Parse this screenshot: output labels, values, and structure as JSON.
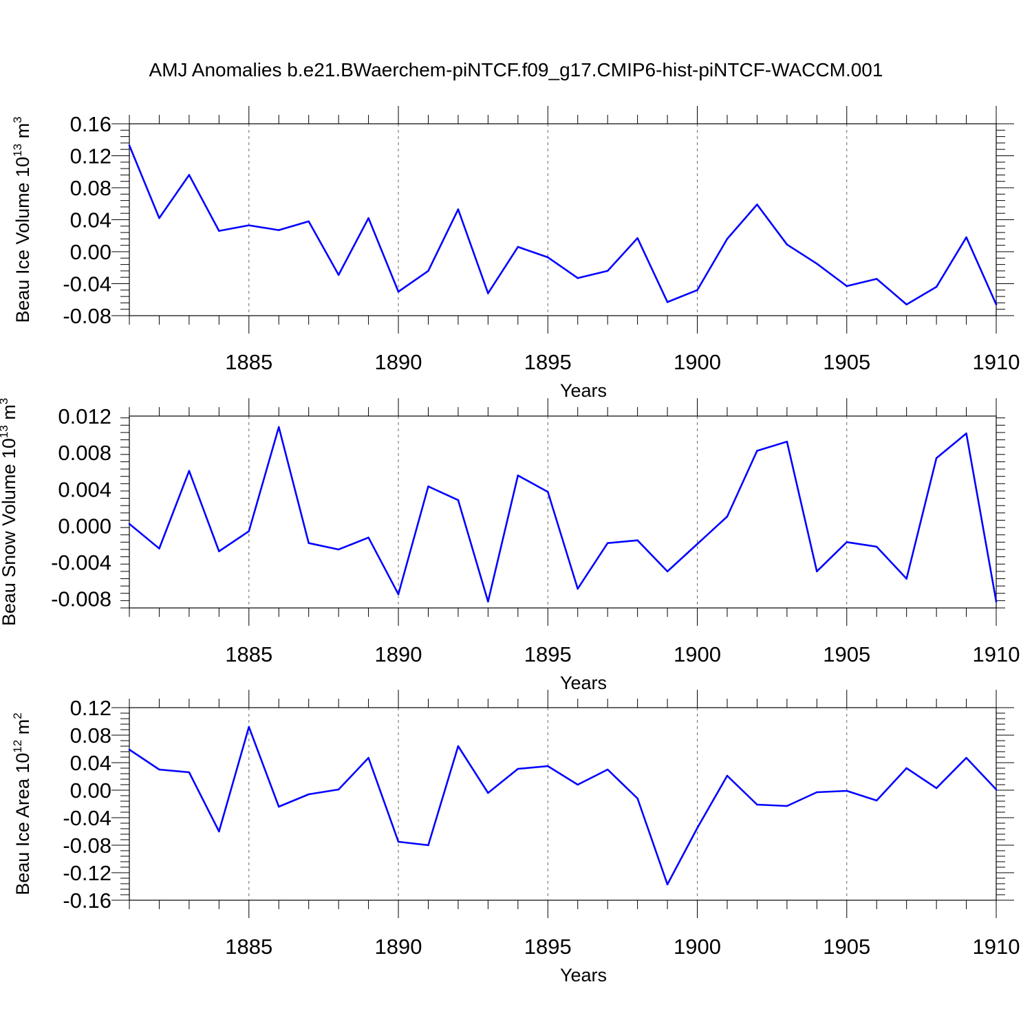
{
  "title": "AMJ Anomalies b.e21.BWaerchem-piNTCF.f09_g17.CMIP6-hist-piNTCF-WACCM.001",
  "chart_data": [
    {
      "type": "line",
      "xlabel": "Years",
      "ylabel_main": "Beau Ice Volume 10",
      "ylabel_sup": "13",
      "ylabel_unit": " m",
      "ylabel_unit_sup": "3",
      "xlim": [
        1881,
        1910
      ],
      "ylim": [
        -0.08,
        0.16
      ],
      "yticks": [
        "0.16",
        "0.12",
        "0.08",
        "0.04",
        "0.00",
        "-0.04",
        "-0.08"
      ],
      "ytick_values": [
        0.16,
        0.12,
        0.08,
        0.04,
        0.0,
        -0.04,
        -0.08
      ],
      "xticks": [
        "1885",
        "1890",
        "1895",
        "1900",
        "1905",
        "1910"
      ],
      "xtick_values": [
        1885,
        1890,
        1895,
        1900,
        1905,
        1910
      ],
      "color": "#0000ff",
      "grid": "vertical dashed at major x ticks",
      "x": [
        1881,
        1882,
        1883,
        1884,
        1885,
        1886,
        1887,
        1888,
        1889,
        1890,
        1891,
        1892,
        1893,
        1894,
        1895,
        1896,
        1897,
        1898,
        1899,
        1900,
        1901,
        1902,
        1903,
        1904,
        1905,
        1906,
        1907,
        1908,
        1909,
        1910
      ],
      "values": [
        0.133,
        0.042,
        0.096,
        0.026,
        0.033,
        0.027,
        0.038,
        -0.029,
        0.042,
        -0.05,
        -0.024,
        0.053,
        -0.052,
        0.006,
        -0.007,
        -0.033,
        -0.024,
        0.017,
        -0.063,
        -0.048,
        0.016,
        0.059,
        0.009,
        -0.015,
        -0.043,
        -0.034,
        -0.066,
        -0.044,
        0.018,
        -0.066
      ]
    },
    {
      "type": "line",
      "xlabel": "Years",
      "ylabel_main": "Beau Snow Volume 10",
      "ylabel_sup": "13",
      "ylabel_unit": " m",
      "ylabel_unit_sup": "3",
      "xlim": [
        1881,
        1910
      ],
      "ylim": [
        -0.009,
        0.012
      ],
      "yticks": [
        "0.012",
        "0.008",
        "0.004",
        "0.000",
        "-0.004",
        "-0.008"
      ],
      "ytick_values": [
        0.012,
        0.008,
        0.004,
        0.0,
        -0.004,
        -0.008
      ],
      "xticks": [
        "1885",
        "1890",
        "1895",
        "1900",
        "1905",
        "1910"
      ],
      "xtick_values": [
        1885,
        1890,
        1895,
        1900,
        1905,
        1910
      ],
      "color": "#0000ff",
      "grid": "vertical dashed at major x ticks",
      "x": [
        1881,
        1882,
        1883,
        1884,
        1885,
        1886,
        1887,
        1888,
        1889,
        1890,
        1891,
        1892,
        1893,
        1894,
        1895,
        1896,
        1897,
        1898,
        1899,
        1900,
        1901,
        1902,
        1903,
        1904,
        1905,
        1906,
        1907,
        1908,
        1909,
        1910
      ],
      "values": [
        0.0002,
        -0.0025,
        0.006,
        -0.0028,
        -0.0006,
        0.0108,
        -0.0019,
        -0.0026,
        -0.0013,
        -0.0075,
        0.0043,
        0.0028,
        -0.0083,
        0.0055,
        0.0037,
        -0.0069,
        -0.0019,
        -0.0016,
        -0.005,
        -0.002,
        0.001,
        0.0082,
        0.0092,
        -0.005,
        -0.0018,
        -0.0023,
        -0.0058,
        0.0074,
        0.0101,
        -0.0083
      ]
    },
    {
      "type": "line",
      "xlabel": "Years",
      "ylabel_main": "Beau Ice Area 10",
      "ylabel_sup": "12",
      "ylabel_unit": " m",
      "ylabel_unit_sup": "2",
      "xlim": [
        1881,
        1910
      ],
      "ylim": [
        -0.16,
        0.12
      ],
      "yticks": [
        "0.12",
        "0.08",
        "0.04",
        "0.00",
        "-0.04",
        "-0.08",
        "-0.12",
        "-0.16"
      ],
      "ytick_values": [
        0.12,
        0.08,
        0.04,
        0.0,
        -0.04,
        -0.08,
        -0.12,
        -0.16
      ],
      "xticks": [
        "1885",
        "1890",
        "1895",
        "1900",
        "1905",
        "1910"
      ],
      "xtick_values": [
        1885,
        1890,
        1895,
        1900,
        1905,
        1910
      ],
      "color": "#0000ff",
      "grid": "vertical dashed at major x ticks",
      "x": [
        1881,
        1882,
        1883,
        1884,
        1885,
        1886,
        1887,
        1888,
        1889,
        1890,
        1891,
        1892,
        1893,
        1894,
        1895,
        1896,
        1897,
        1898,
        1899,
        1900,
        1901,
        1902,
        1903,
        1904,
        1905,
        1906,
        1907,
        1908,
        1909,
        1910
      ],
      "values": [
        0.059,
        0.03,
        0.026,
        -0.06,
        0.092,
        -0.024,
        -0.006,
        0.001,
        0.047,
        -0.075,
        -0.08,
        0.064,
        -0.004,
        0.031,
        0.035,
        0.008,
        0.03,
        -0.012,
        -0.137,
        -0.055,
        0.021,
        -0.021,
        -0.023,
        -0.003,
        -0.001,
        -0.015,
        0.032,
        0.003,
        0.047,
        0.001
      ]
    }
  ]
}
